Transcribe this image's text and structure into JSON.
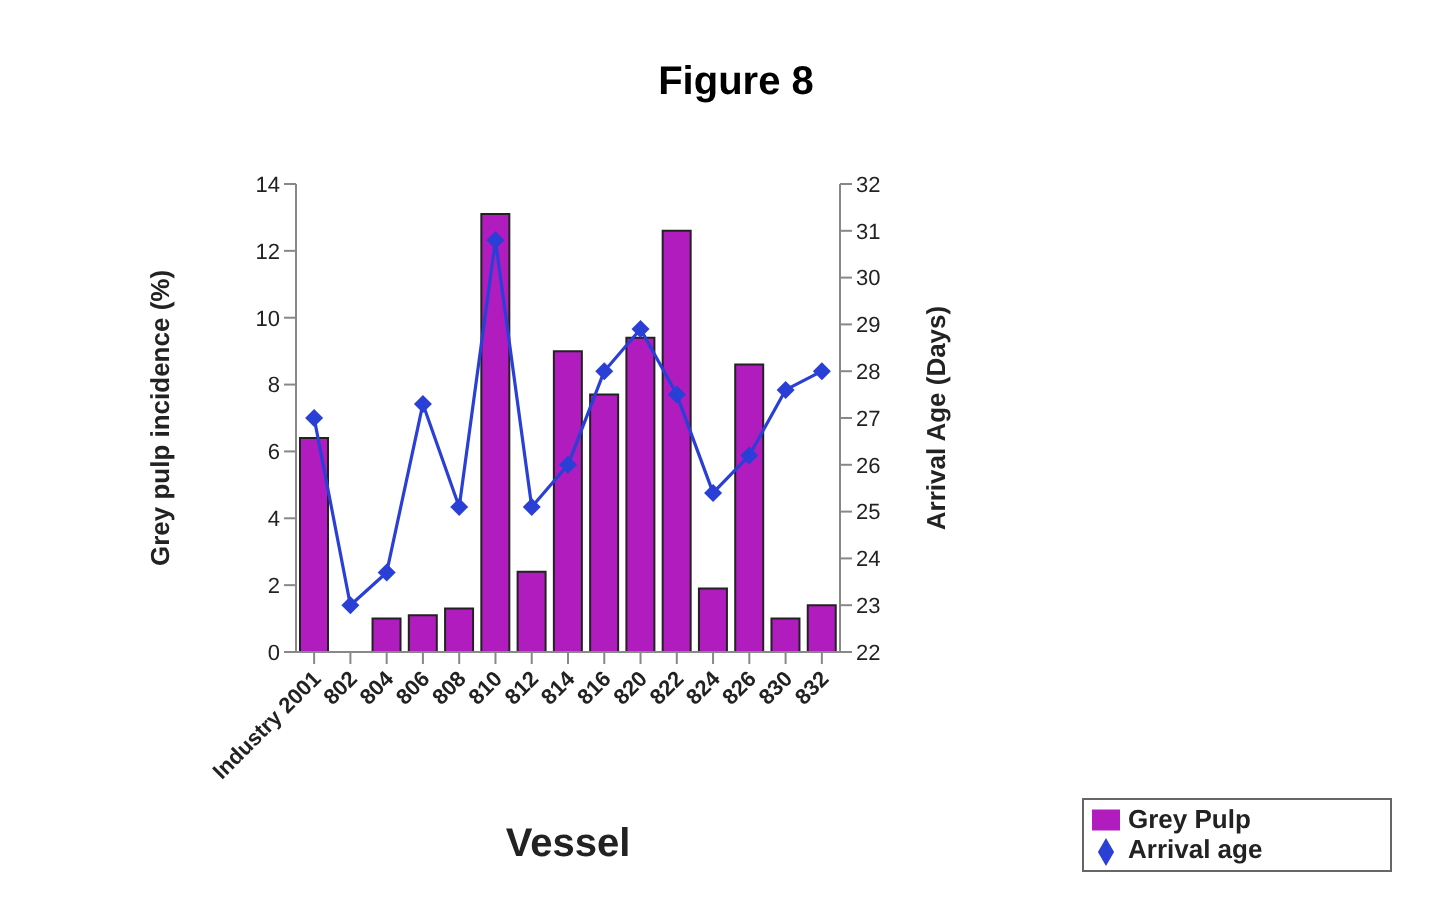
{
  "chart_data": {
    "type": "bar",
    "title": "Figure 8",
    "xlabel": "Vessel",
    "ylabel": "Grey pulp incidence (%)",
    "y2label": "Arrival Age (Days)",
    "categories": [
      "Industry 2001",
      "802",
      "804",
      "806",
      "808",
      "810",
      "812",
      "814",
      "816",
      "820",
      "822",
      "824",
      "826",
      "830",
      "832"
    ],
    "series": [
      {
        "name": "Grey Pulp",
        "color": "#b01cbe",
        "values": [
          6.4,
          null,
          1.0,
          1.1,
          1.3,
          13.1,
          2.4,
          9.0,
          7.7,
          9.4,
          12.6,
          1.9,
          8.6,
          1.0,
          1.4
        ]
      },
      {
        "name": "Arrival age",
        "type": "line",
        "axis": "y2",
        "color": "#2a3fd6",
        "marker": "diamond",
        "values": [
          27.0,
          23.0,
          23.7,
          27.3,
          25.1,
          30.8,
          25.1,
          26.0,
          28.0,
          28.9,
          27.5,
          25.4,
          26.2,
          27.6,
          28.0
        ]
      }
    ],
    "ylim": [
      0,
      14
    ],
    "yticks": [
      0,
      2,
      4,
      6,
      8,
      10,
      12,
      14
    ],
    "y2lim": [
      22,
      32
    ],
    "y2ticks": [
      22,
      23,
      24,
      25,
      26,
      27,
      28,
      29,
      30,
      31,
      32
    ],
    "grid": false,
    "legend": "bottom right"
  }
}
